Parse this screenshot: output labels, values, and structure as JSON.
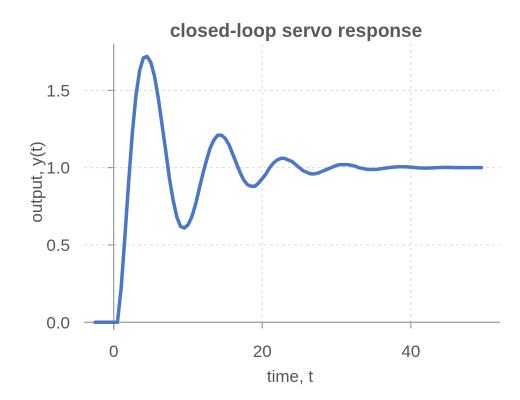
{
  "chart_data": {
    "type": "line",
    "title": "closed-loop servo response",
    "xlabel": "time, t",
    "ylabel": "output, y(t)",
    "xlim": [
      -4,
      52
    ],
    "ylim": [
      -0.05,
      1.8
    ],
    "xticks": [
      0,
      20,
      40
    ],
    "yticks": [
      0.0,
      0.5,
      1.0,
      1.5
    ],
    "xtick_labels": [
      "0",
      "20",
      "40"
    ],
    "ytick_labels": [
      "0.0",
      "0.5",
      "1.0",
      "1.5"
    ],
    "grid": true,
    "line_color": "#4a77c8",
    "series": [
      {
        "x": [
          -2.5,
          0.5,
          1.0,
          1.5,
          2.0,
          2.5,
          3.0,
          3.5,
          4.0,
          4.5,
          5.0,
          5.5,
          6.0,
          6.5,
          7.0,
          7.5,
          8.0,
          8.5,
          9.0,
          9.5,
          10.0,
          10.5,
          11.0,
          11.5,
          12.0,
          12.5,
          13.0,
          13.5,
          14.0,
          14.5,
          15.0,
          15.5,
          16.0,
          16.5,
          17.0,
          17.5,
          18.0,
          18.5,
          19.0,
          19.5,
          20.0,
          20.5,
          21.0,
          21.5,
          22.0,
          22.5,
          23.0,
          23.5,
          24.0,
          24.5,
          25.0,
          25.5,
          26.0,
          26.5,
          27.0,
          27.5,
          28.0,
          28.5,
          29.0,
          29.5,
          30.0,
          30.5,
          31.0,
          31.5,
          32.0,
          32.5,
          33.0,
          33.5,
          34.0,
          34.5,
          35.0,
          35.5,
          36.0,
          36.5,
          37.0,
          37.5,
          38.0,
          38.5,
          39.0,
          39.5,
          40.0,
          40.5,
          41.0,
          41.5,
          42.0,
          42.5,
          43.0,
          43.5,
          44.0,
          44.5,
          45.0,
          45.5,
          46.0,
          46.5,
          47.0,
          47.5,
          48.0,
          48.5,
          49.0,
          49.5
        ],
        "y": [
          0.0,
          0.0,
          0.22,
          0.55,
          0.9,
          1.22,
          1.47,
          1.63,
          1.71,
          1.72,
          1.68,
          1.59,
          1.45,
          1.28,
          1.11,
          0.93,
          0.79,
          0.68,
          0.62,
          0.61,
          0.63,
          0.68,
          0.76,
          0.86,
          0.96,
          1.05,
          1.13,
          1.18,
          1.21,
          1.21,
          1.19,
          1.15,
          1.09,
          1.03,
          0.97,
          0.92,
          0.89,
          0.88,
          0.88,
          0.9,
          0.93,
          0.96,
          1.0,
          1.03,
          1.05,
          1.06,
          1.06,
          1.05,
          1.04,
          1.02,
          1.0,
          0.98,
          0.97,
          0.96,
          0.96,
          0.965,
          0.975,
          0.985,
          0.995,
          1.005,
          1.015,
          1.02,
          1.02,
          1.02,
          1.015,
          1.01,
          1.0,
          0.995,
          0.99,
          0.988,
          0.988,
          0.99,
          0.993,
          0.997,
          1.0,
          1.003,
          1.005,
          1.006,
          1.006,
          1.005,
          1.003,
          1.001,
          0.999,
          0.998,
          0.997,
          0.998,
          0.999,
          1.0,
          1.001,
          1.002,
          1.002,
          1.001,
          1.0,
          1.0,
          1.0,
          1.0,
          1.0,
          1.0,
          1.0,
          1.0
        ]
      }
    ]
  }
}
